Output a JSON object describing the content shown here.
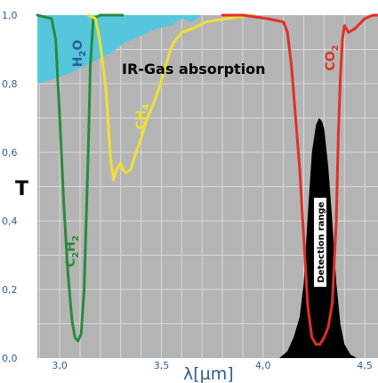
{
  "chart_data": {
    "type": "line",
    "title": "IR-Gas absorption",
    "ylabel": "T",
    "xlabel": "λ[µm]",
    "xlim": [
      2.89,
      4.565
    ],
    "ylim": [
      0.0,
      1.0
    ],
    "x_ticks": [
      {
        "value": 3.0,
        "label": "3,0"
      },
      {
        "value": 3.5,
        "label": "3,5"
      },
      {
        "value": 4.0,
        "label": "4,0"
      },
      {
        "value": 4.5,
        "label": "4,5"
      }
    ],
    "y_ticks": [
      {
        "value": 0.0,
        "label": "0,0"
      },
      {
        "value": 0.2,
        "label": "0,2"
      },
      {
        "value": 0.4,
        "label": "0,4"
      },
      {
        "value": 0.6,
        "label": "0,6"
      },
      {
        "value": 0.8,
        "label": "0,8"
      },
      {
        "value": 1.0,
        "label": "1,0"
      }
    ],
    "grid": true,
    "colors": {
      "background": "#b4b4b4",
      "grid": "#d9d9d9",
      "h2o_fill": "#55c6dc",
      "c2h2": "#2a8a3c",
      "ch4": "#f0e030",
      "co2": "#e03028",
      "detection": "#000000"
    },
    "series": [
      {
        "name": "H2O",
        "label": {
          "main": "H",
          "sub": "2",
          "after": "O"
        },
        "kind": "area",
        "points": [
          [
            2.89,
            0.8
          ],
          [
            2.95,
            0.81
          ],
          [
            3.05,
            0.83
          ],
          [
            3.15,
            0.86
          ],
          [
            3.25,
            0.89
          ],
          [
            3.32,
            0.92
          ],
          [
            3.4,
            0.94
          ],
          [
            3.47,
            0.96
          ],
          [
            3.55,
            0.97
          ],
          [
            3.6,
            0.99
          ],
          [
            3.65,
            0.98
          ],
          [
            3.7,
            1.0
          ]
        ]
      },
      {
        "name": "C2H2",
        "label": {
          "main": "C",
          "sub": "2",
          "after": "H",
          "sub2": "2"
        },
        "kind": "line",
        "points": [
          [
            2.89,
            1.0
          ],
          [
            2.96,
            0.99
          ],
          [
            2.98,
            0.93
          ],
          [
            3.0,
            0.7
          ],
          [
            3.02,
            0.45
          ],
          [
            3.04,
            0.25
          ],
          [
            3.06,
            0.11
          ],
          [
            3.075,
            0.06
          ],
          [
            3.09,
            0.05
          ],
          [
            3.105,
            0.07
          ],
          [
            3.12,
            0.2
          ],
          [
            3.13,
            0.4
          ],
          [
            3.14,
            0.6
          ],
          [
            3.15,
            0.85
          ],
          [
            3.165,
            0.99
          ],
          [
            3.2,
            1.0
          ],
          [
            3.31,
            1.0
          ]
        ]
      },
      {
        "name": "CH4",
        "label": {
          "main": "CH",
          "sub": "4"
        },
        "kind": "line",
        "points": [
          [
            3.14,
            1.0
          ],
          [
            3.175,
            0.99
          ],
          [
            3.19,
            0.95
          ],
          [
            3.21,
            0.87
          ],
          [
            3.23,
            0.77
          ],
          [
            3.24,
            0.67
          ],
          [
            3.25,
            0.58
          ],
          [
            3.265,
            0.52
          ],
          [
            3.28,
            0.55
          ],
          [
            3.3,
            0.57
          ],
          [
            3.31,
            0.55
          ],
          [
            3.325,
            0.54
          ],
          [
            3.35,
            0.55
          ],
          [
            3.37,
            0.59
          ],
          [
            3.4,
            0.64
          ],
          [
            3.43,
            0.7
          ],
          [
            3.46,
            0.74
          ],
          [
            3.49,
            0.79
          ],
          [
            3.52,
            0.85
          ],
          [
            3.545,
            0.9
          ],
          [
            3.56,
            0.92
          ],
          [
            3.6,
            0.95
          ],
          [
            3.65,
            0.96
          ],
          [
            3.72,
            0.98
          ],
          [
            3.82,
            0.99
          ],
          [
            3.95,
            1.0
          ]
        ]
      },
      {
        "name": "CO2",
        "label": {
          "main": "CO",
          "sub": "2"
        },
        "kind": "line",
        "points": [
          [
            3.8,
            1.0
          ],
          [
            3.9,
            1.0
          ],
          [
            4.02,
            0.99
          ],
          [
            4.1,
            0.98
          ],
          [
            4.12,
            0.95
          ],
          [
            4.14,
            0.85
          ],
          [
            4.16,
            0.7
          ],
          [
            4.18,
            0.55
          ],
          [
            4.2,
            0.35
          ],
          [
            4.22,
            0.15
          ],
          [
            4.24,
            0.06
          ],
          [
            4.26,
            0.04
          ],
          [
            4.28,
            0.04
          ],
          [
            4.3,
            0.06
          ],
          [
            4.32,
            0.09
          ],
          [
            4.34,
            0.16
          ],
          [
            4.36,
            0.4
          ],
          [
            4.37,
            0.65
          ],
          [
            4.38,
            0.82
          ],
          [
            4.39,
            0.93
          ],
          [
            4.4,
            0.97
          ],
          [
            4.42,
            0.95
          ],
          [
            4.45,
            0.96
          ],
          [
            4.5,
            0.99
          ],
          [
            4.54,
            1.0
          ],
          [
            4.565,
            1.0
          ]
        ]
      },
      {
        "name": "Detection range",
        "label": {
          "main": "Detection range"
        },
        "kind": "area",
        "points": [
          [
            4.08,
            0.0
          ],
          [
            4.12,
            0.02
          ],
          [
            4.15,
            0.06
          ],
          [
            4.18,
            0.12
          ],
          [
            4.2,
            0.22
          ],
          [
            4.22,
            0.42
          ],
          [
            4.24,
            0.6
          ],
          [
            4.26,
            0.68
          ],
          [
            4.275,
            0.7
          ],
          [
            4.29,
            0.69
          ],
          [
            4.3,
            0.67
          ],
          [
            4.32,
            0.56
          ],
          [
            4.34,
            0.4
          ],
          [
            4.36,
            0.22
          ],
          [
            4.38,
            0.1
          ],
          [
            4.4,
            0.04
          ],
          [
            4.43,
            0.01
          ],
          [
            4.46,
            0.0
          ]
        ]
      }
    ]
  }
}
